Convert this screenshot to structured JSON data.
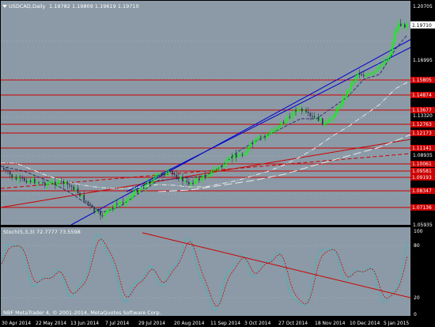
{
  "header": {
    "symbol": "USDCAD,Daily",
    "ohlc": "1.19782 1.19809 1.19619 1.19710"
  },
  "stoch_panel": {
    "label": "Stoch(5,3,3) 72.7777 73.5598",
    "copyright": "NBF MetaTrader 4, © 2001-2014, MetaQuotes Software Corp.",
    "levels": [
      "100",
      "80",
      "20",
      "0"
    ]
  },
  "x_axis_labels": [
    "30 Apr 2014",
    "22 May 2014",
    "13 Jun 2014",
    "7 Jul 2014",
    "29 Jul 2014",
    "20 Aug 2014",
    "11 Sep 2014",
    "3 Oct 2014",
    "27 Oct 2014",
    "18 Nov 2014",
    "10 Dec 2014",
    "5 Jan 2015"
  ],
  "price_axis": {
    "ticks": [
      "1.20705",
      "1.19710",
      "1.16995",
      "1.13320",
      "1.08935",
      "1.05935"
    ],
    "current_price": "1.19710",
    "level_labels": [
      "1.15805",
      "1.14874",
      "1.13677",
      "1.12763",
      "1.12173",
      "1.11141",
      "1.10061",
      "1.09581",
      "1.09193",
      "1.08347",
      "1.07136"
    ]
  },
  "colors": {
    "panel_bg": "#8b9aa6",
    "outer_bg": "#000000",
    "bull_candle": "#00ff00",
    "bear_candle": "#2c3650",
    "support_resistance": "#cc0000",
    "channel": "#0000cc",
    "moving_average_light": "#e8e8e8",
    "moving_average_dark": "#30306a",
    "stoch_main": "#00cccc",
    "stoch_signal": "#cc0000",
    "trendline": "#cc0000"
  },
  "chart_data": {
    "type": "candlestick",
    "symbol": "USDCAD",
    "timeframe": "Daily",
    "price_range": [
      1.05935,
      1.20705
    ],
    "last": {
      "open": 1.19782,
      "high": 1.19809,
      "low": 1.19619,
      "close": 1.1971
    },
    "horizontal_levels": [
      1.15805,
      1.14874,
      1.13677,
      1.12763,
      1.12173,
      1.11141,
      1.10061,
      1.09581,
      1.09193,
      1.08347,
      1.07136
    ],
    "stochastic": {
      "params": "5,3,3",
      "main": 72.7777,
      "signal": 73.5598,
      "levels": [
        20,
        80
      ]
    }
  }
}
